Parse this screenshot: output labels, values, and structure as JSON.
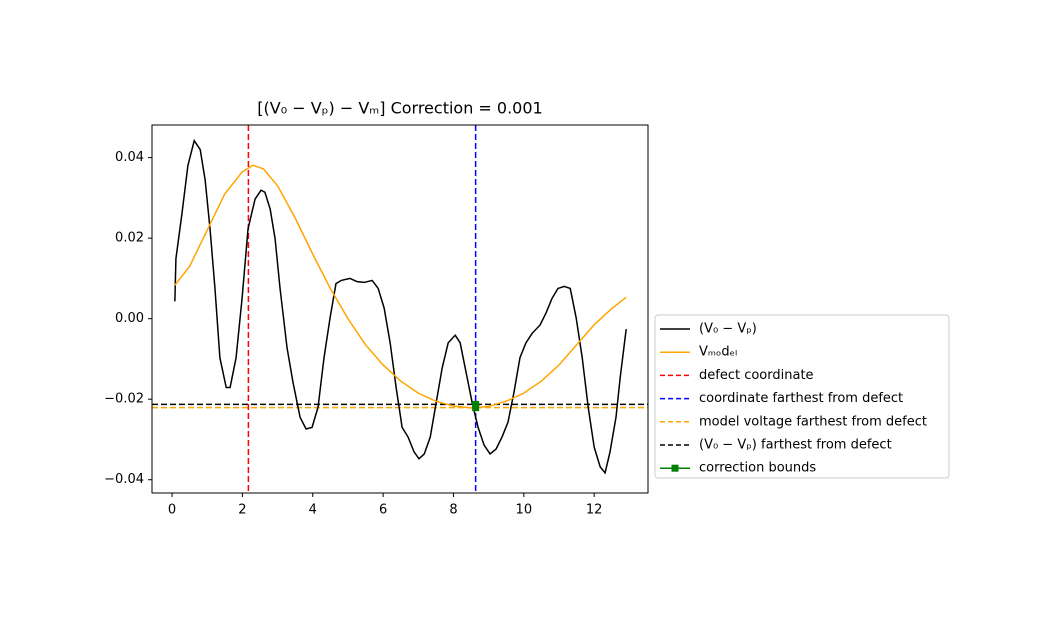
{
  "chart_data": {
    "type": "line",
    "title": "[(V₀ − Vₚ) − Vₘ] Correction = 0.001",
    "xlim": [
      -0.57,
      13.53
    ],
    "ylim": [
      -0.0433,
      0.0481
    ],
    "xticks": [
      0,
      2,
      4,
      6,
      8,
      10,
      12
    ],
    "yticks": [
      {
        "value": -0.04,
        "label": "−0.04"
      },
      {
        "value": -0.02,
        "label": "−0.02"
      },
      {
        "value": 0,
        "label": "0.00"
      },
      {
        "value": 0.02,
        "label": "0.02"
      },
      {
        "value": 0.04,
        "label": "0.04"
      }
    ],
    "legend": "right",
    "series": [
      {
        "name": "(V₀ − Vₚ)",
        "color": "#000000",
        "kind": "line",
        "style": "solid",
        "x": [
          0.08,
          0.11,
          0.28,
          0.45,
          0.63,
          0.8,
          0.94,
          1.08,
          1.22,
          1.36,
          1.54,
          1.65,
          1.82,
          1.99,
          2.16,
          2.36,
          2.53,
          2.64,
          2.79,
          2.93,
          3.07,
          3.27,
          3.44,
          3.64,
          3.81,
          3.98,
          4.15,
          4.32,
          4.49,
          4.66,
          4.81,
          5.06,
          5.26,
          5.46,
          5.69,
          5.86,
          6.03,
          6.2,
          6.37,
          6.54,
          6.71,
          6.88,
          7.02,
          7.17,
          7.34,
          7.51,
          7.68,
          7.85,
          8.05,
          8.19,
          8.36,
          8.53,
          8.7,
          8.87,
          9.04,
          9.21,
          9.38,
          9.55,
          9.72,
          9.89,
          10.06,
          10.24,
          10.46,
          10.63,
          10.8,
          10.97,
          11.15,
          11.32,
          11.49,
          11.66,
          11.83,
          12.0,
          12.17,
          12.31,
          12.45,
          12.62,
          12.74,
          12.91
        ],
        "values": [
          0.0043,
          0.0149,
          0.026,
          0.038,
          0.0442,
          0.042,
          0.0345,
          0.0223,
          0.0075,
          -0.0097,
          -0.0171,
          -0.0171,
          -0.0097,
          0.005,
          0.0223,
          0.0297,
          0.0319,
          0.0314,
          0.0272,
          0.0198,
          0.0075,
          -0.0073,
          -0.0159,
          -0.0245,
          -0.0274,
          -0.027,
          -0.022,
          -0.0097,
          0.0001,
          0.0087,
          0.0095,
          0.01,
          0.0092,
          0.009,
          0.0095,
          0.0075,
          0.0026,
          -0.006,
          -0.0171,
          -0.027,
          -0.0294,
          -0.0331,
          -0.0348,
          -0.0336,
          -0.0294,
          -0.0208,
          -0.0122,
          -0.006,
          -0.0041,
          -0.006,
          -0.0134,
          -0.0208,
          -0.027,
          -0.0314,
          -0.0336,
          -0.0324,
          -0.0294,
          -0.0257,
          -0.0183,
          -0.0097,
          -0.006,
          -0.0036,
          -0.0016,
          0.0014,
          0.005,
          0.0075,
          0.008,
          0.0075,
          0.0001,
          -0.0097,
          -0.022,
          -0.0319,
          -0.0368,
          -0.0383,
          -0.0331,
          -0.0245,
          -0.0146,
          -0.0026
        ]
      },
      {
        "name": "Vₘₒdₑₗ",
        "color": "#ffa500",
        "kind": "line",
        "style": "solid",
        "x": [
          0.08,
          0.5,
          1.0,
          1.5,
          2.0,
          2.3,
          2.6,
          3.0,
          3.5,
          4.0,
          4.5,
          5.0,
          5.5,
          6.0,
          6.5,
          7.0,
          7.5,
          8.0,
          8.5,
          9.0,
          9.5,
          10.0,
          10.5,
          11.0,
          11.5,
          12.0,
          12.5,
          12.91
        ],
        "values": [
          0.0083,
          0.013,
          0.022,
          0.031,
          0.0365,
          0.0381,
          0.0372,
          0.033,
          0.025,
          0.016,
          0.0075,
          0.0,
          -0.0065,
          -0.0115,
          -0.0155,
          -0.0185,
          -0.0205,
          -0.0217,
          -0.0222,
          -0.0218,
          -0.0205,
          -0.0185,
          -0.0155,
          -0.0115,
          -0.0065,
          -0.0015,
          0.0025,
          0.0053
        ]
      },
      {
        "name": "defect coordinate",
        "color": "#ff0000",
        "kind": "vline",
        "style": "dashed",
        "x": [
          2.17
        ]
      },
      {
        "name": "coordinate farthest from defect",
        "color": "#0000ff",
        "kind": "vline",
        "style": "dashed",
        "x": [
          8.63
        ]
      },
      {
        "name": "model voltage farthest from defect",
        "color": "#ffa500",
        "kind": "hline",
        "style": "dashed",
        "values": [
          -0.0221
        ]
      },
      {
        "name": "(V₀ − Vₚ) farthest from defect",
        "color": "#000000",
        "kind": "hline",
        "style": "dashed",
        "values": [
          -0.0213
        ]
      },
      {
        "name": "correction bounds",
        "color": "#008000",
        "kind": "line",
        "style": "solid",
        "marker": "square",
        "x": [
          8.63,
          8.63
        ],
        "values": [
          -0.0213,
          -0.0221
        ]
      }
    ]
  }
}
